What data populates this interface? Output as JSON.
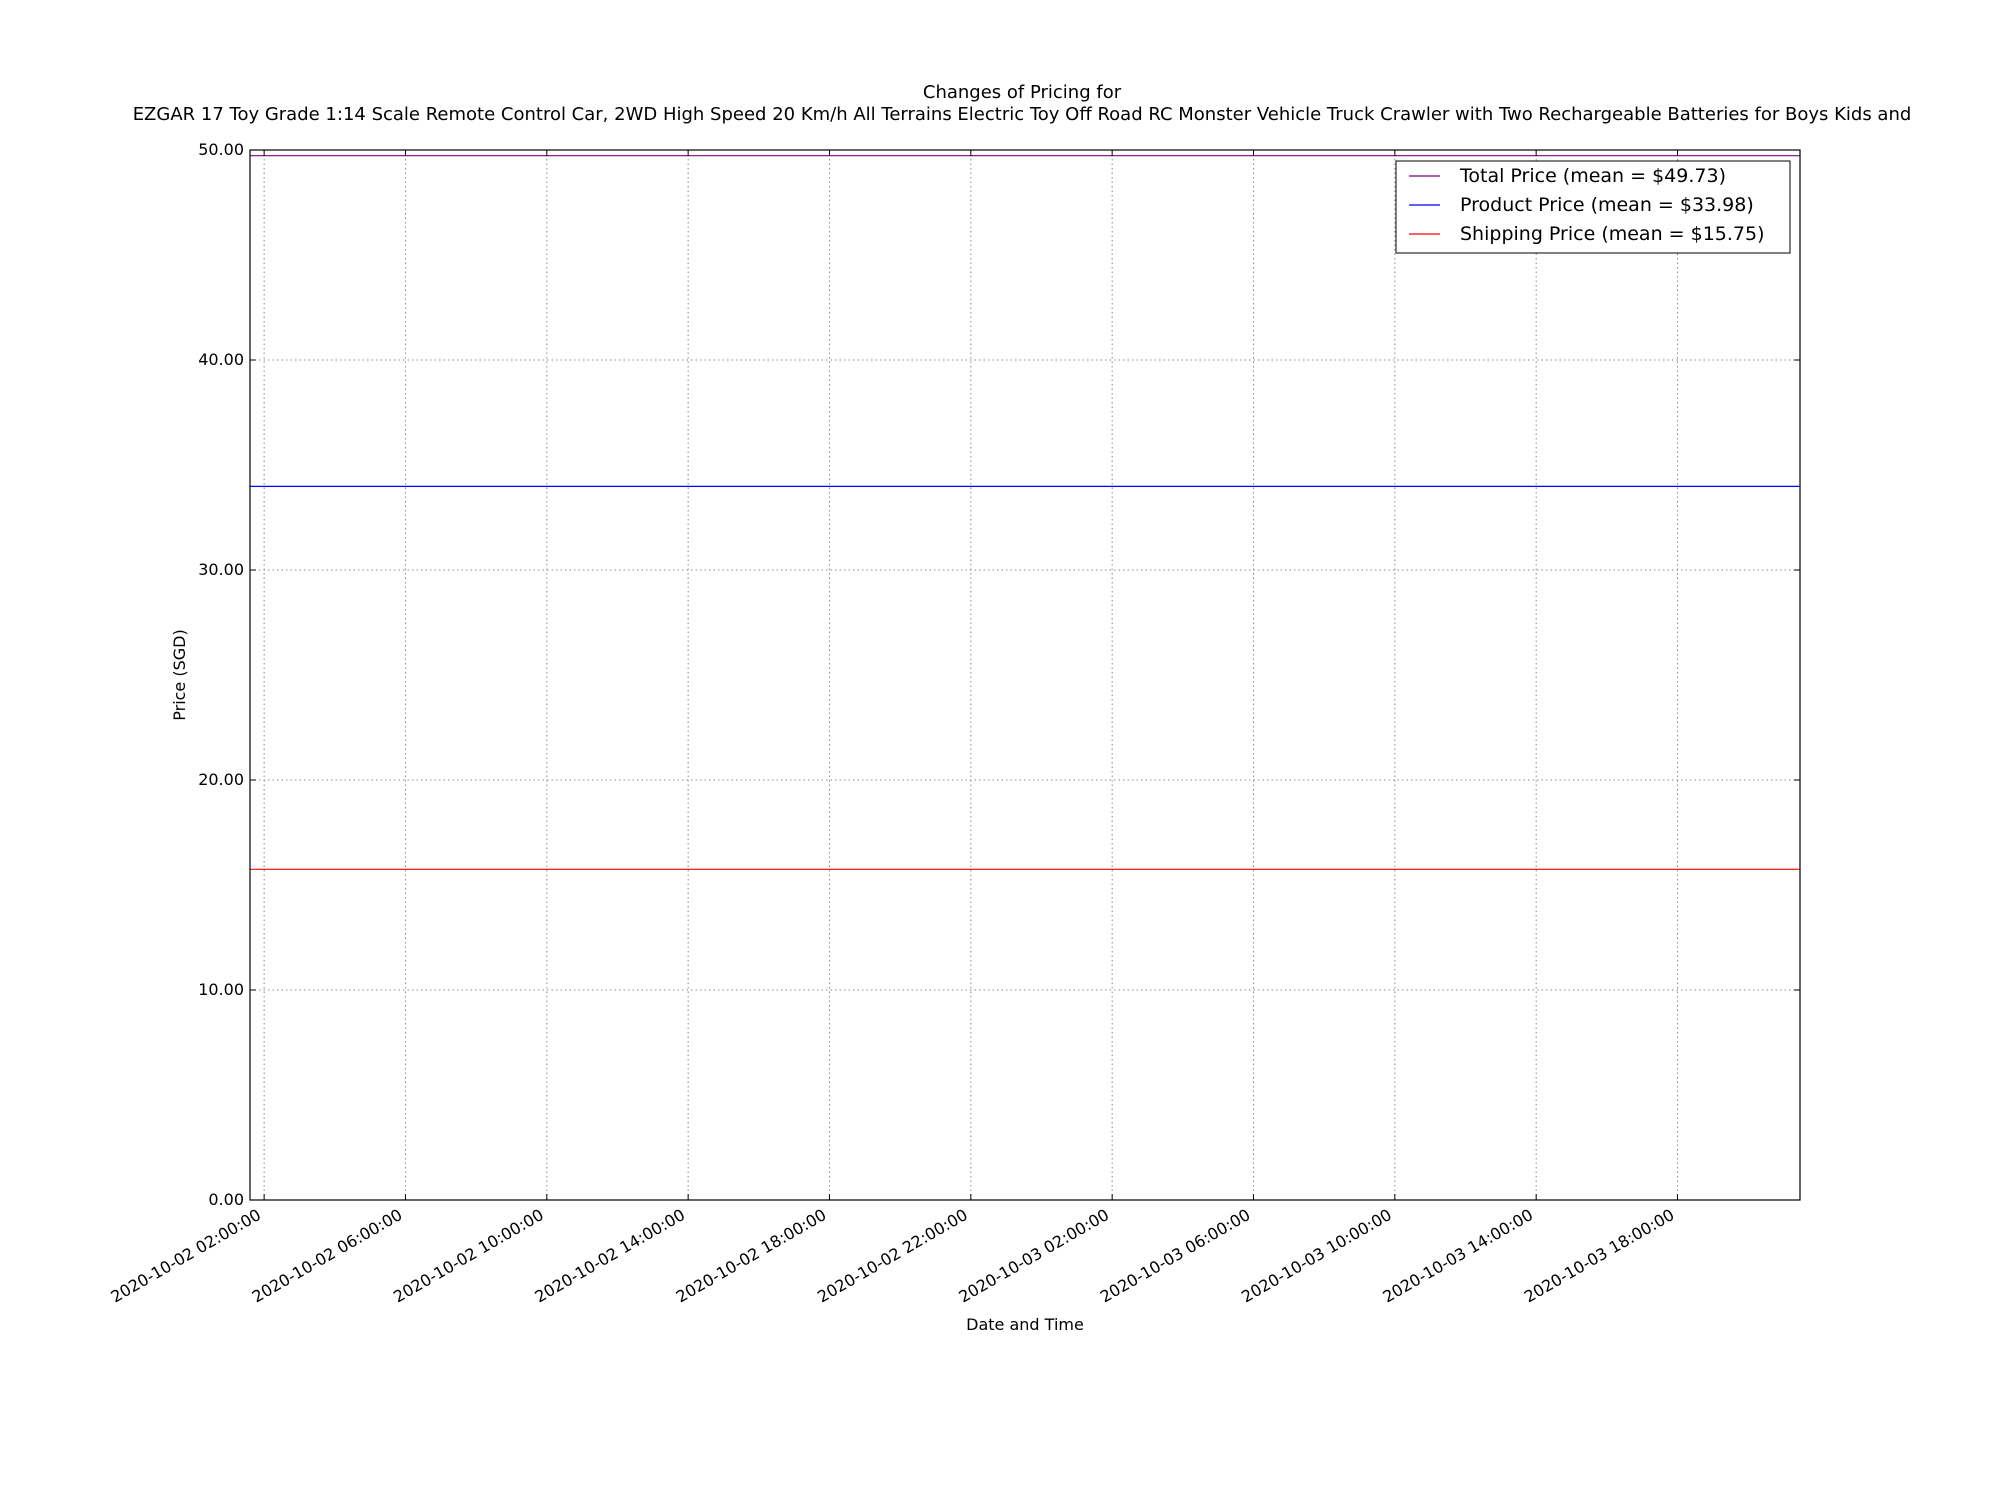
{
  "chart_data": {
    "type": "line",
    "title": "Changes of Pricing for",
    "subtitle": "EZGAR 17 Toy Grade 1:14 Scale Remote Control Car, 2WD High Speed 20 Km/h All Terrains Electric Toy Off Road RC Monster Vehicle Truck Crawler with Two Rechargeable Batteries for Boys Kids and",
    "xlabel": "Date and Time",
    "ylabel": "Price (SGD)",
    "x_range": [
      "2020-10-02 01:36:00",
      "2020-10-03 21:28:00"
    ],
    "ylim": [
      0,
      50
    ],
    "y_ticks": [
      0,
      10,
      20,
      30,
      40,
      50
    ],
    "y_tick_labels": [
      "0.00",
      "10.00",
      "20.00",
      "30.00",
      "40.00",
      "50.00"
    ],
    "x_ticks": [
      "2020-10-02 02:00:00",
      "2020-10-02 06:00:00",
      "2020-10-02 10:00:00",
      "2020-10-02 14:00:00",
      "2020-10-02 18:00:00",
      "2020-10-02 22:00:00",
      "2020-10-03 02:00:00",
      "2020-10-03 06:00:00",
      "2020-10-03 10:00:00",
      "2020-10-03 14:00:00",
      "2020-10-03 18:00:00"
    ],
    "grid": true,
    "legend_position": "top-right",
    "series": [
      {
        "name": "Total Price (mean = $49.73)",
        "color": "#800080",
        "x": [
          "2020-10-02 01:36:00",
          "2020-10-03 21:28:00"
        ],
        "y": [
          49.73,
          49.73
        ]
      },
      {
        "name": "Product Price (mean = $33.98)",
        "color": "#0000ff",
        "x": [
          "2020-10-02 01:36:00",
          "2020-10-03 21:28:00"
        ],
        "y": [
          33.98,
          33.98
        ]
      },
      {
        "name": "Shipping Price (mean = $15.75)",
        "color": "#ff0000",
        "x": [
          "2020-10-02 01:36:00",
          "2020-10-03 21:28:00"
        ],
        "y": [
          15.75,
          15.75
        ]
      }
    ]
  }
}
